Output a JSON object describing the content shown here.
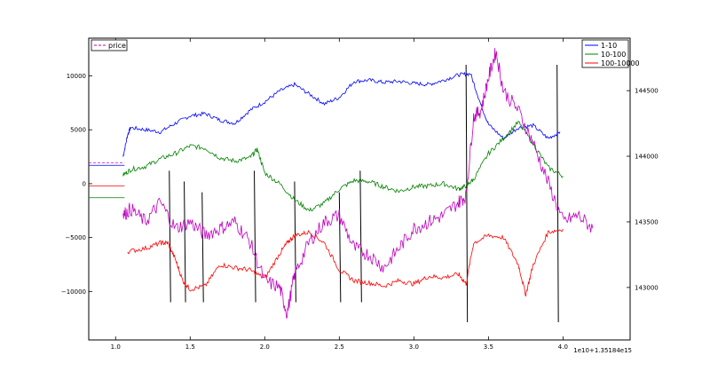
{
  "chart_data": {
    "type": "line",
    "x_offset_label": "1e10+1.35184e15",
    "x_ticks": [
      "1.0",
      "1.5",
      "2.0",
      "2.5",
      "3.0",
      "3.5",
      "4.0"
    ],
    "x_tick_values": [
      1.0,
      1.5,
      2.0,
      2.5,
      3.0,
      3.5,
      4.0
    ],
    "xlim": [
      0.82,
      4.45
    ],
    "left_axis": {
      "ticks": [
        "10000",
        "5000",
        "0",
        "−5000",
        "−10000"
      ],
      "tick_values": [
        10000,
        5000,
        0,
        -5000,
        -10000
      ],
      "ylim": [
        -14500,
        13500
      ]
    },
    "right_axis": {
      "ticks": [
        "144500",
        "144000",
        "143500",
        "143000"
      ],
      "tick_values": [
        144500,
        144000,
        143500,
        143000
      ],
      "ylim": [
        142600,
        144900
      ]
    },
    "series": [
      {
        "name": "1-10",
        "axis": "left",
        "color": "#0000ff",
        "x": [
          1.05,
          1.08,
          1.1,
          1.2,
          1.3,
          1.4,
          1.5,
          1.6,
          1.7,
          1.8,
          1.9,
          2.0,
          2.1,
          2.2,
          2.3,
          2.4,
          2.5,
          2.6,
          2.7,
          2.8,
          2.9,
          3.0,
          3.1,
          3.2,
          3.3,
          3.38,
          3.45,
          3.5,
          3.6,
          3.7,
          3.8,
          3.9,
          3.98
        ],
        "y": [
          2500,
          4500,
          5200,
          5000,
          4800,
          5600,
          6300,
          6500,
          5900,
          5600,
          6800,
          7600,
          8600,
          9200,
          8300,
          7400,
          8000,
          9500,
          9600,
          9400,
          9500,
          9300,
          9200,
          9600,
          10100,
          10200,
          7300,
          5500,
          4200,
          5200,
          5400,
          4200,
          4800
        ]
      },
      {
        "name": "10-100",
        "axis": "left",
        "color": "#008000",
        "x": [
          1.05,
          1.1,
          1.2,
          1.3,
          1.4,
          1.5,
          1.6,
          1.7,
          1.8,
          1.9,
          1.95,
          2.0,
          2.1,
          2.2,
          2.3,
          2.4,
          2.5,
          2.6,
          2.7,
          2.8,
          2.9,
          3.0,
          3.1,
          3.2,
          3.3,
          3.35,
          3.4,
          3.5,
          3.6,
          3.7,
          3.8,
          3.9,
          4.0
        ],
        "y": [
          800,
          1300,
          1600,
          2300,
          2800,
          3500,
          3300,
          2400,
          2100,
          2400,
          3200,
          1000,
          0,
          -1500,
          -2500,
          -1800,
          -500,
          300,
          200,
          -300,
          -700,
          -300,
          -200,
          0,
          -500,
          -200,
          400,
          2800,
          4200,
          5700,
          3700,
          1500,
          700
        ]
      },
      {
        "name": "100-10000",
        "axis": "left",
        "color": "#ff0000",
        "x": [
          1.08,
          1.2,
          1.3,
          1.35,
          1.4,
          1.45,
          1.5,
          1.6,
          1.7,
          1.8,
          1.9,
          2.0,
          2.1,
          2.15,
          2.2,
          2.3,
          2.4,
          2.5,
          2.6,
          2.7,
          2.8,
          2.9,
          3.0,
          3.1,
          3.2,
          3.3,
          3.35,
          3.4,
          3.5,
          3.6,
          3.7,
          3.75,
          3.8,
          3.9,
          4.0
        ],
        "y": [
          -6300,
          -6000,
          -5500,
          -5500,
          -7000,
          -9000,
          -9800,
          -9500,
          -7500,
          -7800,
          -8000,
          -8800,
          -6500,
          -5500,
          -4800,
          -4500,
          -5500,
          -8000,
          -9000,
          -9200,
          -9500,
          -9000,
          -9300,
          -8600,
          -8700,
          -8400,
          -9300,
          -5500,
          -4800,
          -5000,
          -7500,
          -10300,
          -7500,
          -4500,
          -4200
        ]
      },
      {
        "name": "price",
        "axis": "right",
        "color": "#bf00bf",
        "x": [
          1.05,
          1.1,
          1.2,
          1.3,
          1.4,
          1.5,
          1.6,
          1.7,
          1.8,
          1.9,
          2.0,
          2.1,
          2.15,
          2.2,
          2.3,
          2.4,
          2.5,
          2.6,
          2.7,
          2.8,
          2.9,
          3.0,
          3.1,
          3.2,
          3.3,
          3.35,
          3.4,
          3.45,
          3.5,
          3.55,
          3.6,
          3.7,
          3.8,
          3.9,
          4.0,
          4.1,
          4.2
        ],
        "y": [
          143550,
          143600,
          143500,
          143650,
          143450,
          143500,
          143400,
          143450,
          143500,
          143350,
          143050,
          143000,
          142800,
          143100,
          143350,
          143500,
          143550,
          143300,
          143250,
          143150,
          143300,
          143450,
          143500,
          143550,
          143650,
          143700,
          144300,
          144350,
          144600,
          144800,
          144500,
          144350,
          144100,
          143800,
          143500,
          143550,
          143450
        ]
      }
    ],
    "vertical_lines_x": [
      1.36,
      1.46,
      1.58,
      1.93,
      2.2,
      2.5,
      2.64,
      3.35,
      3.96
    ],
    "legend_right": {
      "position": "top-right",
      "entries": [
        "1-10",
        "10-100",
        "100-10000"
      ]
    },
    "legend_left": {
      "position": "top-left",
      "entries": [
        "price"
      ]
    }
  }
}
